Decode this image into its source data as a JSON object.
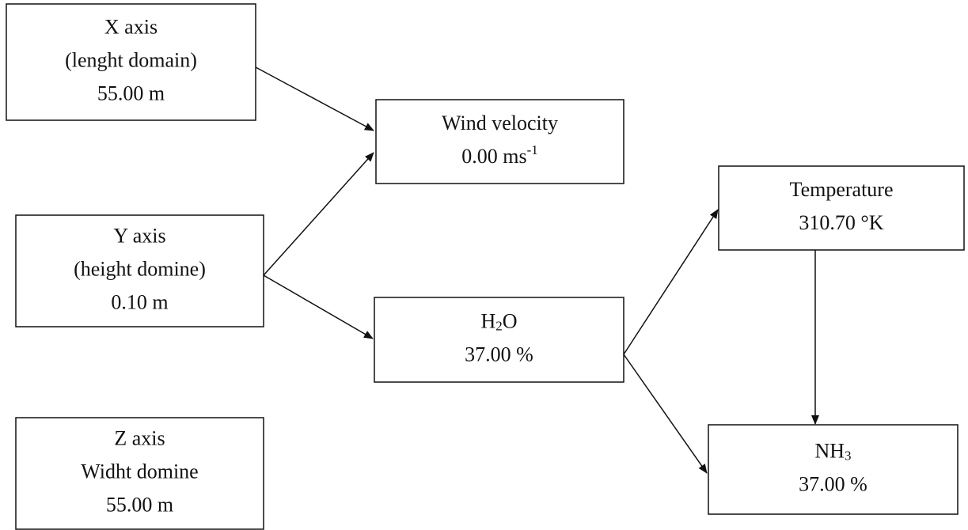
{
  "nodes": [
    {
      "lines": [
        {
          "text": "X axis"
        },
        {
          "text": "(lenght domain)"
        },
        {
          "text": "55.00 m"
        }
      ]
    },
    {
      "lines": [
        {
          "text": "Wind velocity"
        },
        {
          "text": "0.00 ms",
          "sup": "-1"
        }
      ]
    },
    {
      "lines": [
        {
          "text": "Y axis"
        },
        {
          "text": "(height domine)"
        },
        {
          "text": "0.10 m"
        }
      ]
    },
    {
      "lines": [
        {
          "text": "H",
          "sub": "2",
          "after": "O"
        },
        {
          "text": "37.00 %"
        }
      ]
    },
    {
      "lines": [
        {
          "text": "Temperature"
        },
        {
          "text": "310.70 °K"
        }
      ]
    },
    {
      "lines": [
        {
          "text": "NH",
          "sub": "3"
        },
        {
          "text": "37.00 %"
        }
      ]
    },
    {
      "lines": [
        {
          "text": "Z axis"
        },
        {
          "text": "Widht domine"
        },
        {
          "text": "55.00 m"
        }
      ]
    }
  ]
}
